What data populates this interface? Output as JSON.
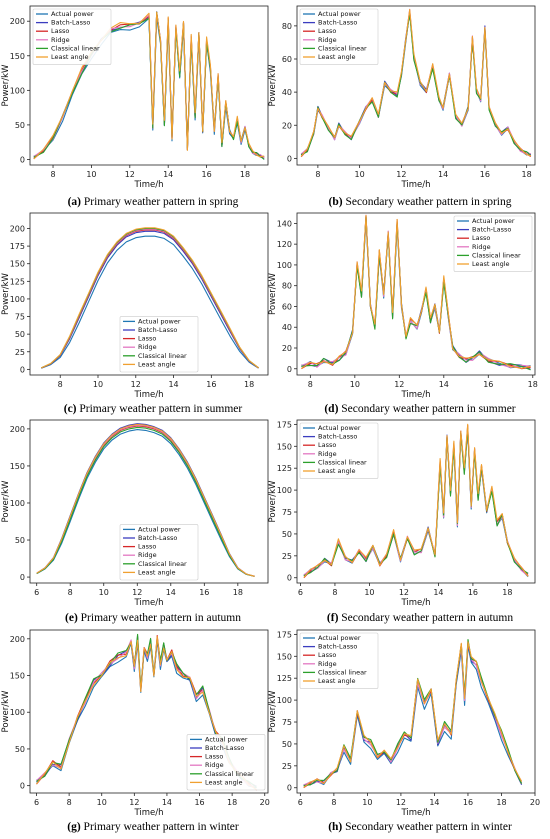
{
  "series_colors": [
    "#1f77b4",
    "#3b3dbf",
    "#d62728",
    "#e377c2",
    "#2ca02c",
    "#f0a030"
  ],
  "chart_data": [
    {
      "type": "line",
      "caption": {
        "label": "(a)",
        "text": "Primary weather pattern in spring"
      },
      "xlabel": "Time/h",
      "ylabel": "Power/kW",
      "xlim": [
        6.8,
        19.2
      ],
      "ylim": [
        -8,
        222
      ],
      "xticks": [
        8,
        10,
        12,
        14,
        16,
        18
      ],
      "yticks": [
        0,
        50,
        100,
        150,
        200
      ],
      "legend": "top-left",
      "series": [
        {
          "name": "Actual power",
          "color": "#1f77b4",
          "offset": -3,
          "jitter": 2
        },
        {
          "name": "Batch-Lasso",
          "color": "#3b3dbf",
          "offset": 2,
          "jitter": 2
        },
        {
          "name": "Lasso",
          "color": "#d62728",
          "offset": 3,
          "jitter": 2
        },
        {
          "name": "Ridge",
          "color": "#e377c2",
          "offset": 2,
          "jitter": 2
        },
        {
          "name": "Classical linear",
          "color": "#2ca02c",
          "offset": 1,
          "jitter": 2
        },
        {
          "name": "Least angle",
          "color": "#f0a030",
          "offset": 5,
          "jitter": 3
        }
      ],
      "x": [
        7.0,
        7.5,
        8.0,
        8.5,
        9.0,
        9.5,
        10.0,
        10.5,
        11.0,
        11.5,
        12.0,
        12.5,
        13.0,
        13.2,
        13.4,
        13.6,
        13.8,
        14.0,
        14.2,
        14.4,
        14.6,
        14.8,
        15.0,
        15.2,
        15.4,
        15.6,
        15.8,
        16.0,
        16.2,
        16.4,
        16.6,
        16.8,
        17.0,
        17.2,
        17.4,
        17.6,
        17.8,
        18.0,
        18.2,
        18.4,
        18.6,
        18.8,
        19.0
      ],
      "values": [
        3,
        12,
        30,
        60,
        95,
        125,
        150,
        170,
        185,
        190,
        192,
        195,
        205,
        45,
        210,
        170,
        50,
        200,
        30,
        190,
        120,
        195,
        15,
        175,
        60,
        180,
        40,
        170,
        130,
        40,
        120,
        20,
        80,
        40,
        30,
        55,
        25,
        45,
        20,
        10,
        8,
        5,
        2
      ]
    },
    {
      "type": "line",
      "caption": {
        "label": "(b)",
        "text": "Secondary weather pattern in spring"
      },
      "xlabel": "Time/h",
      "ylabel": "Power/kW",
      "xlim": [
        7.0,
        18.4
      ],
      "ylim": [
        -4,
        92
      ],
      "xticks": [
        8,
        10,
        12,
        14,
        16,
        18
      ],
      "yticks": [
        0,
        20,
        40,
        60,
        80
      ],
      "legend": "top-left",
      "series": [
        {
          "name": "Actual power",
          "color": "#1f77b4",
          "offset": 0,
          "jitter": 1
        },
        {
          "name": "Batch-Lasso",
          "color": "#3b3dbf",
          "offset": 1,
          "jitter": 1
        },
        {
          "name": "Lasso",
          "color": "#d62728",
          "offset": 1,
          "jitter": 1
        },
        {
          "name": "Ridge",
          "color": "#e377c2",
          "offset": 1,
          "jitter": 1
        },
        {
          "name": "Classical linear",
          "color": "#2ca02c",
          "offset": 0,
          "jitter": 1
        },
        {
          "name": "Least angle",
          "color": "#f0a030",
          "offset": 2,
          "jitter": 1
        }
      ],
      "x": [
        7.2,
        7.5,
        7.8,
        8.0,
        8.2,
        8.5,
        8.8,
        9.0,
        9.3,
        9.6,
        10.0,
        10.3,
        10.6,
        10.9,
        11.2,
        11.5,
        11.8,
        12.0,
        12.2,
        12.4,
        12.6,
        12.9,
        13.2,
        13.5,
        13.8,
        14.0,
        14.3,
        14.6,
        14.9,
        15.2,
        15.4,
        15.6,
        15.8,
        16.0,
        16.2,
        16.5,
        16.8,
        17.1,
        17.4,
        17.7,
        18.0,
        18.2
      ],
      "values": [
        2,
        5,
        15,
        30,
        25,
        18,
        12,
        20,
        15,
        12,
        22,
        30,
        35,
        25,
        45,
        40,
        38,
        50,
        70,
        88,
        60,
        45,
        40,
        55,
        35,
        30,
        50,
        25,
        20,
        30,
        72,
        40,
        35,
        78,
        30,
        20,
        15,
        18,
        10,
        5,
        3,
        2
      ]
    },
    {
      "type": "line",
      "caption": {
        "label": "(c)",
        "text": "Primary weather pattern in summer"
      },
      "xlabel": "Time/h",
      "ylabel": "Power/kW",
      "xlim": [
        6.4,
        19.0
      ],
      "ylim": [
        -8,
        222
      ],
      "xticks": [
        8,
        10,
        12,
        14,
        16,
        18
      ],
      "yticks": [
        0,
        25,
        50,
        75,
        100,
        125,
        150,
        175,
        200
      ],
      "legend": "bottom-center",
      "series": [
        {
          "name": "Actual power",
          "color": "#1f77b4",
          "offset": -9,
          "jitter": 0
        },
        {
          "name": "Batch-Lasso",
          "color": "#3b3dbf",
          "offset": -2,
          "jitter": 0
        },
        {
          "name": "Lasso",
          "color": "#d62728",
          "offset": 0,
          "jitter": 0
        },
        {
          "name": "Ridge",
          "color": "#e377c2",
          "offset": 1,
          "jitter": 0
        },
        {
          "name": "Classical linear",
          "color": "#2ca02c",
          "offset": 2,
          "jitter": 0
        },
        {
          "name": "Least angle",
          "color": "#f0a030",
          "offset": 3,
          "jitter": 0
        }
      ],
      "x": [
        7.0,
        7.5,
        8.0,
        8.5,
        9.0,
        9.5,
        10.0,
        10.5,
        11.0,
        11.5,
        12.0,
        12.5,
        13.0,
        13.5,
        14.0,
        14.5,
        15.0,
        15.5,
        16.0,
        16.5,
        17.0,
        17.5,
        18.0,
        18.5
      ],
      "values": [
        2,
        8,
        20,
        45,
        75,
        105,
        135,
        160,
        178,
        190,
        196,
        198,
        198,
        195,
        186,
        170,
        152,
        130,
        105,
        80,
        55,
        30,
        12,
        2
      ]
    },
    {
      "type": "line",
      "caption": {
        "label": "(d)",
        "text": "Secondary weather pattern in summer"
      },
      "xlabel": "Time/h",
      "ylabel": "Power/kW",
      "xlim": [
        7.4,
        18.1
      ],
      "ylim": [
        -6,
        150
      ],
      "xticks": [
        8,
        10,
        12,
        14,
        16,
        18
      ],
      "yticks": [
        0,
        20,
        40,
        60,
        80,
        100,
        120,
        140
      ],
      "legend": "top-right",
      "series": [
        {
          "name": "Actual power",
          "color": "#1f77b4",
          "offset": 0,
          "jitter": 2
        },
        {
          "name": "Batch-Lasso",
          "color": "#3b3dbf",
          "offset": 1,
          "jitter": 2
        },
        {
          "name": "Lasso",
          "color": "#d62728",
          "offset": 2,
          "jitter": 2
        },
        {
          "name": "Ridge",
          "color": "#e377c2",
          "offset": 1,
          "jitter": 2
        },
        {
          "name": "Classical linear",
          "color": "#2ca02c",
          "offset": 0,
          "jitter": 2
        },
        {
          "name": "Least angle",
          "color": "#f0a030",
          "offset": 3,
          "jitter": 2
        }
      ],
      "x": [
        7.6,
        8.0,
        8.3,
        8.6,
        9.0,
        9.3,
        9.6,
        9.9,
        10.1,
        10.3,
        10.5,
        10.7,
        10.9,
        11.1,
        11.3,
        11.5,
        11.7,
        11.9,
        12.1,
        12.3,
        12.5,
        12.8,
        13.0,
        13.2,
        13.4,
        13.6,
        13.8,
        14.0,
        14.2,
        14.4,
        14.7,
        15.0,
        15.3,
        15.6,
        16.0,
        16.5,
        17.0,
        17.5,
        17.9
      ],
      "values": [
        2,
        5,
        3,
        8,
        5,
        10,
        15,
        35,
        100,
        70,
        145,
        60,
        40,
        110,
        70,
        130,
        50,
        140,
        60,
        30,
        45,
        40,
        55,
        75,
        45,
        60,
        35,
        85,
        50,
        20,
        12,
        8,
        10,
        15,
        8,
        5,
        3,
        2,
        1
      ]
    },
    {
      "type": "line",
      "caption": {
        "label": "(e)",
        "text": "Primary weather pattern in autumn"
      },
      "xlabel": "Time/h",
      "ylabel": "Power/kW",
      "xlim": [
        5.6,
        19.8
      ],
      "ylim": [
        -8,
        212
      ],
      "xticks": [
        6,
        8,
        10,
        12,
        14,
        16,
        18
      ],
      "yticks": [
        0,
        50,
        100,
        150,
        200
      ],
      "legend": "bottom-center",
      "series": [
        {
          "name": "Actual power",
          "color": "#1f77b4",
          "offset": -5,
          "jitter": 0
        },
        {
          "name": "Batch-Lasso",
          "color": "#3b3dbf",
          "offset": 3,
          "jitter": 0
        },
        {
          "name": "Lasso",
          "color": "#d62728",
          "offset": 0,
          "jitter": 0
        },
        {
          "name": "Ridge",
          "color": "#e377c2",
          "offset": 1,
          "jitter": 0
        },
        {
          "name": "Classical linear",
          "color": "#2ca02c",
          "offset": -2,
          "jitter": 0
        },
        {
          "name": "Least angle",
          "color": "#f0a030",
          "offset": 2,
          "jitter": 0
        }
      ],
      "x": [
        6.0,
        6.5,
        7.0,
        7.5,
        8.0,
        8.5,
        9.0,
        9.5,
        10.0,
        10.5,
        11.0,
        11.5,
        12.0,
        12.5,
        13.0,
        13.5,
        14.0,
        14.5,
        15.0,
        15.5,
        16.0,
        16.5,
        17.0,
        17.5,
        18.0,
        18.5,
        19.0
      ],
      "values": [
        5,
        12,
        25,
        50,
        80,
        110,
        138,
        160,
        178,
        190,
        198,
        202,
        204,
        203,
        200,
        195,
        185,
        170,
        152,
        130,
        105,
        80,
        55,
        30,
        12,
        4,
        1
      ]
    },
    {
      "type": "line",
      "caption": {
        "label": "(f)",
        "text": "Secondary weather pattern in autumn"
      },
      "xlabel": "Time/h",
      "ylabel": "Power/kW",
      "xlim": [
        5.8,
        19.6
      ],
      "ylim": [
        -6,
        180
      ],
      "xticks": [
        6,
        8,
        10,
        12,
        14,
        16,
        18
      ],
      "yticks": [
        0,
        25,
        50,
        75,
        100,
        125,
        150,
        175
      ],
      "legend": "top-left",
      "series": [
        {
          "name": "Actual power",
          "color": "#1f77b4",
          "offset": 0,
          "jitter": 2
        },
        {
          "name": "Batch-Lasso",
          "color": "#3b3dbf",
          "offset": 1,
          "jitter": 2
        },
        {
          "name": "Lasso",
          "color": "#d62728",
          "offset": 2,
          "jitter": 2
        },
        {
          "name": "Ridge",
          "color": "#e377c2",
          "offset": 1,
          "jitter": 2
        },
        {
          "name": "Classical linear",
          "color": "#2ca02c",
          "offset": 0,
          "jitter": 2
        },
        {
          "name": "Least angle",
          "color": "#f0a030",
          "offset": 4,
          "jitter": 2
        }
      ],
      "x": [
        6.2,
        6.6,
        7.0,
        7.4,
        7.8,
        8.2,
        8.6,
        9.0,
        9.4,
        9.8,
        10.2,
        10.6,
        11.0,
        11.4,
        11.8,
        12.2,
        12.6,
        13.0,
        13.4,
        13.8,
        14.1,
        14.3,
        14.5,
        14.7,
        14.9,
        15.1,
        15.3,
        15.5,
        15.7,
        15.9,
        16.1,
        16.3,
        16.5,
        16.8,
        17.1,
        17.4,
        17.7,
        18.0,
        18.4,
        18.8,
        19.2
      ],
      "values": [
        2,
        8,
        12,
        20,
        15,
        40,
        22,
        18,
        30,
        20,
        35,
        15,
        25,
        50,
        20,
        45,
        28,
        30,
        55,
        25,
        130,
        70,
        160,
        95,
        150,
        60,
        165,
        120,
        170,
        80,
        145,
        90,
        125,
        75,
        100,
        60,
        70,
        40,
        20,
        10,
        3
      ]
    },
    {
      "type": "line",
      "caption": {
        "label": "(g)",
        "text": "Primary weather pattern in winter"
      },
      "xlabel": "Time/h",
      "ylabel": "Power/kW",
      "xlim": [
        5.6,
        20.2
      ],
      "ylim": [
        -10,
        212
      ],
      "xticks": [
        6,
        8,
        10,
        12,
        14,
        16,
        18,
        20
      ],
      "yticks": [
        0,
        50,
        100,
        150,
        200
      ],
      "legend": "bottom-right",
      "series": [
        {
          "name": "Actual power",
          "color": "#1f77b4",
          "offset": -4,
          "jitter": 3
        },
        {
          "name": "Batch-Lasso",
          "color": "#3b3dbf",
          "offset": 1,
          "jitter": 3
        },
        {
          "name": "Lasso",
          "color": "#d62728",
          "offset": 2,
          "jitter": 3
        },
        {
          "name": "Ridge",
          "color": "#e377c2",
          "offset": 1,
          "jitter": 3
        },
        {
          "name": "Classical linear",
          "color": "#2ca02c",
          "offset": 3,
          "jitter": 3
        },
        {
          "name": "Least angle",
          "color": "#f0a030",
          "offset": 0,
          "jitter": 3
        }
      ],
      "x": [
        6.0,
        6.5,
        7.0,
        7.5,
        8.0,
        8.5,
        9.0,
        9.5,
        10.0,
        10.5,
        11.0,
        11.5,
        11.8,
        12.0,
        12.2,
        12.4,
        12.6,
        12.8,
        13.0,
        13.2,
        13.4,
        13.6,
        13.8,
        14.0,
        14.3,
        14.6,
        15.0,
        15.4,
        15.8,
        16.2,
        16.6,
        17.0,
        17.4,
        17.8,
        18.2,
        18.6,
        19.0,
        19.5
      ],
      "values": [
        5,
        15,
        30,
        25,
        60,
        90,
        115,
        140,
        150,
        165,
        175,
        180,
        195,
        160,
        200,
        130,
        185,
        175,
        195,
        150,
        200,
        165,
        190,
        170,
        180,
        160,
        150,
        145,
        120,
        130,
        100,
        70,
        60,
        35,
        20,
        10,
        3,
        -3
      ]
    },
    {
      "type": "line",
      "caption": {
        "label": "(h)",
        "text": "Secondary weather pattern in winter"
      },
      "xlabel": "Time/h",
      "ylabel": "Power/kW",
      "xlim": [
        5.8,
        20.0
      ],
      "ylim": [
        -6,
        180
      ],
      "xticks": [
        6,
        8,
        10,
        12,
        14,
        16,
        18,
        20
      ],
      "yticks": [
        0,
        25,
        50,
        75,
        100,
        125,
        150,
        175
      ],
      "legend": "top-left",
      "series": [
        {
          "name": "Actual power",
          "color": "#1f77b4",
          "offset": -4,
          "jitter": 2
        },
        {
          "name": "Batch-Lasso",
          "color": "#3b3dbf",
          "offset": 1,
          "jitter": 2
        },
        {
          "name": "Lasso",
          "color": "#d62728",
          "offset": 2,
          "jitter": 2
        },
        {
          "name": "Ridge",
          "color": "#e377c2",
          "offset": 1,
          "jitter": 2
        },
        {
          "name": "Classical linear",
          "color": "#2ca02c",
          "offset": 4,
          "jitter": 2
        },
        {
          "name": "Least angle",
          "color": "#f0a030",
          "offset": 3,
          "jitter": 2
        }
      ],
      "x": [
        6.2,
        6.6,
        7.0,
        7.4,
        7.8,
        8.2,
        8.6,
        9.0,
        9.4,
        9.8,
        10.2,
        10.6,
        11.0,
        11.4,
        11.8,
        12.2,
        12.6,
        13.0,
        13.4,
        13.8,
        14.2,
        14.6,
        15.0,
        15.3,
        15.6,
        15.8,
        16.0,
        16.2,
        16.5,
        16.8,
        17.2,
        17.6,
        18.0,
        18.4,
        18.8,
        19.2
      ],
      "values": [
        2,
        5,
        8,
        6,
        15,
        20,
        45,
        30,
        85,
        55,
        50,
        35,
        40,
        30,
        45,
        60,
        55,
        120,
        95,
        110,
        50,
        70,
        60,
        120,
        160,
        100,
        165,
        145,
        140,
        120,
        100,
        80,
        60,
        40,
        20,
        5
      ]
    }
  ]
}
